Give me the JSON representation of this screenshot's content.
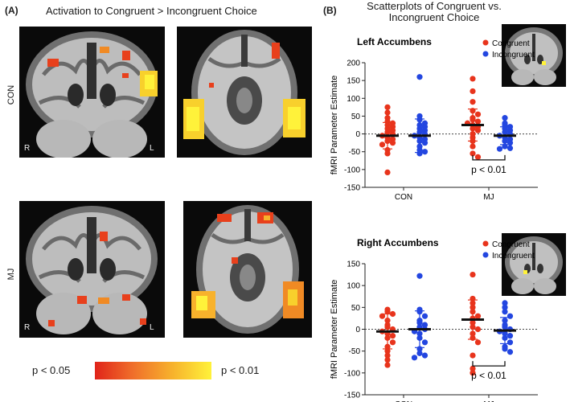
{
  "panelA": {
    "label": "(A)",
    "title": "Activation to Congruent > Incongruent Choice",
    "row_labels": [
      "CON",
      "MJ"
    ],
    "orientation": {
      "r": "R",
      "l": "L"
    },
    "colorbar": {
      "low": "p < 0.05",
      "high": "p < 0.01",
      "colors": [
        "#e0241a",
        "#f0702a",
        "#f7b22c",
        "#fff23a"
      ]
    }
  },
  "panelB": {
    "label": "(B)",
    "title_line1": "Scatterplots of Congruent vs.",
    "title_line2": "Incongruent Choice"
  },
  "colors": {
    "congruent": "#e8341c",
    "incongruent": "#2346e0"
  },
  "chart_data": [
    {
      "type": "scatter",
      "title": "Left Accumbens",
      "ylabel": "fMRI Parameter Estimate",
      "categories": [
        "CON",
        "MJ"
      ],
      "ylim": [
        -150,
        200
      ],
      "yticks": [
        200,
        150,
        100,
        50,
        0,
        -50,
        -100,
        -150
      ],
      "legend": [
        "Congruent",
        "Incongruent"
      ],
      "legend_position": "top-right",
      "annotation": "p < 0.01",
      "series": [
        {
          "name": "Congruent",
          "group": "CON",
          "mean": -5,
          "sd": 37,
          "values": [
            75,
            60,
            45,
            35,
            30,
            25,
            20,
            15,
            10,
            5,
            0,
            -5,
            -10,
            -15,
            -20,
            -25,
            -30,
            -45,
            -55,
            -108
          ]
        },
        {
          "name": "Incongruent",
          "group": "CON",
          "mean": -5,
          "sd": 47,
          "values": [
            160,
            50,
            40,
            30,
            25,
            20,
            15,
            10,
            5,
            0,
            -5,
            -10,
            -15,
            -20,
            -25,
            -35,
            -45,
            -50,
            -55
          ]
        },
        {
          "name": "Congruent",
          "group": "MJ",
          "mean": 25,
          "sd": 45,
          "values": [
            155,
            120,
            90,
            65,
            55,
            45,
            40,
            35,
            30,
            25,
            20,
            15,
            10,
            0,
            -10,
            -20,
            -35,
            -55,
            -65
          ]
        },
        {
          "name": "Incongruent",
          "group": "MJ",
          "mean": -5,
          "sd": 25,
          "values": [
            45,
            30,
            25,
            20,
            15,
            10,
            5,
            0,
            -5,
            -10,
            -15,
            -20,
            -25,
            -35,
            -40,
            -42
          ]
        }
      ]
    },
    {
      "type": "scatter",
      "title": "Right Accumbens",
      "ylabel": "fMRI Parameter Estimate",
      "categories": [
        "CON",
        "MJ"
      ],
      "ylim": [
        -150,
        150
      ],
      "yticks": [
        150,
        100,
        50,
        0,
        -50,
        -100,
        -150
      ],
      "legend": [
        "Congruent",
        "Incongruent"
      ],
      "legend_position": "top-right",
      "annotation": "p < 0.01",
      "series": [
        {
          "name": "Congruent",
          "group": "CON",
          "mean": -5,
          "sd": 40,
          "values": [
            45,
            40,
            35,
            30,
            20,
            10,
            5,
            0,
            -5,
            -10,
            -15,
            -20,
            -30,
            -40,
            -50,
            -60,
            -70,
            -82
          ]
        },
        {
          "name": "Incongruent",
          "group": "CON",
          "mean": 0,
          "sd": 42,
          "values": [
            122,
            45,
            40,
            30,
            20,
            15,
            10,
            5,
            0,
            -5,
            -10,
            -20,
            -30,
            -45,
            -55,
            -60,
            -65
          ]
        },
        {
          "name": "Congruent",
          "group": "MJ",
          "mean": 22,
          "sd": 45,
          "values": [
            125,
            70,
            60,
            50,
            40,
            30,
            25,
            15,
            5,
            0,
            -10,
            -20,
            -30,
            -60,
            -90,
            -100
          ]
        },
        {
          "name": "Incongruent",
          "group": "MJ",
          "mean": -3,
          "sd": 30,
          "values": [
            60,
            50,
            40,
            30,
            20,
            10,
            5,
            0,
            -5,
            -10,
            -15,
            -20,
            -30,
            -40,
            -45,
            -52
          ]
        }
      ]
    }
  ]
}
